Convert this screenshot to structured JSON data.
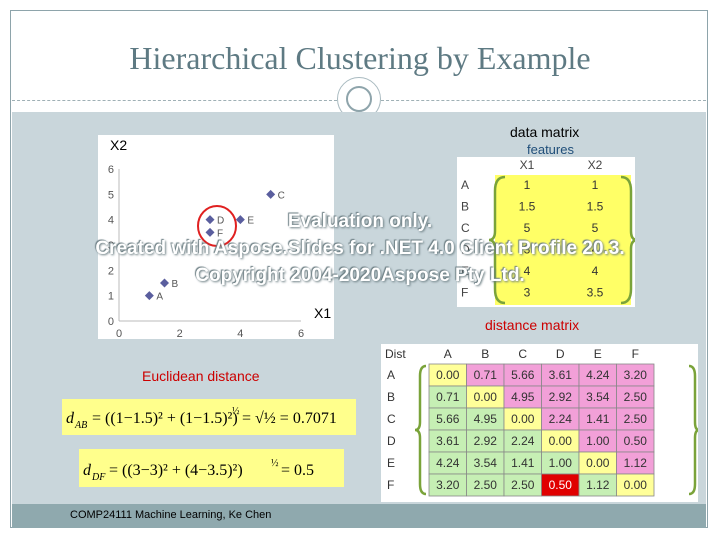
{
  "slide": {
    "title": "Hierarchical Clustering by Example",
    "footer": "COMP24111  Machine Learning, Ke Chen"
  },
  "labels": {
    "data_matrix": "data matrix",
    "features": "features",
    "distance_matrix": "distance matrix",
    "euclidean_distance": "Euclidean distance"
  },
  "scatter": {
    "x_axis_label": "X1",
    "y_axis_label": "X2",
    "x_ticks": [
      "0",
      "2",
      "4",
      "6"
    ],
    "y_ticks": [
      "0",
      "1",
      "2",
      "3",
      "4",
      "5",
      "6"
    ],
    "points": [
      {
        "name": "A",
        "x": 1,
        "y": 1
      },
      {
        "name": "B",
        "x": 1.5,
        "y": 1.5
      },
      {
        "name": "C",
        "x": 5,
        "y": 5
      },
      {
        "name": "D",
        "x": 3,
        "y": 4
      },
      {
        "name": "E",
        "x": 4,
        "y": 4
      },
      {
        "name": "F",
        "x": 3,
        "y": 3.5
      }
    ],
    "xlim": [
      0,
      6
    ],
    "ylim": [
      0,
      6
    ],
    "highlight": [
      "D",
      "F"
    ]
  },
  "data_matrix": {
    "columns": [
      "X1",
      "X2"
    ],
    "rows": [
      {
        "label": "A",
        "x1": "1",
        "x2": "1"
      },
      {
        "label": "B",
        "x1": "1.5",
        "x2": "1.5"
      },
      {
        "label": "C",
        "x1": "5",
        "x2": "5"
      },
      {
        "label": "D",
        "x1": "3",
        "x2": "4"
      },
      {
        "label": "E",
        "x1": "4",
        "x2": "4"
      },
      {
        "label": "F",
        "x1": "3",
        "x2": "3.5"
      }
    ]
  },
  "distance_matrix": {
    "corner": "Dist",
    "columns": [
      "A",
      "B",
      "C",
      "D",
      "E",
      "F"
    ],
    "rows": [
      {
        "label": "A",
        "values": [
          "0.00",
          "0.71",
          "5.66",
          "3.61",
          "4.24",
          "3.20"
        ]
      },
      {
        "label": "B",
        "values": [
          "0.71",
          "0.00",
          "4.95",
          "2.92",
          "3.54",
          "2.50"
        ]
      },
      {
        "label": "C",
        "values": [
          "5.66",
          "4.95",
          "0.00",
          "2.24",
          "1.41",
          "2.50"
        ]
      },
      {
        "label": "D",
        "values": [
          "3.61",
          "2.92",
          "2.24",
          "0.00",
          "1.00",
          "0.50"
        ]
      },
      {
        "label": "E",
        "values": [
          "4.24",
          "3.54",
          "1.41",
          "1.00",
          "0.00",
          "1.12"
        ]
      },
      {
        "label": "F",
        "values": [
          "3.20",
          "2.50",
          "2.50",
          "0.50",
          "1.12",
          "0.00"
        ]
      }
    ]
  },
  "equations": {
    "eq1": {
      "lhs": "d",
      "sub": "AB",
      "body": "= ((1−1.5)² + (1−1.5)²)",
      "exp": "½",
      "rhs": "= √½ = 0.7071"
    },
    "eq2": {
      "lhs": "d",
      "sub": "DF",
      "body": "= ((3−3)² + (4−3.5)²)",
      "exp": "½",
      "rhs": "= 0.5"
    }
  },
  "watermark": {
    "line1": "Evaluation only.",
    "line2": "Created with Aspose.Slides for .NET 4.0 Client Profile 20.3.",
    "line3": "Copyright 2004-2020Aspose Pty Ltd."
  },
  "colors": {
    "title": "#5e7a83",
    "band": "#c9d6db",
    "footer": "#8fa9ae",
    "point": "#5a5e9e",
    "highlight_circle": "#e02020",
    "cell_yellow": "#ffff99",
    "cell_green": "#c6efb4",
    "cell_pink": "#f2a0d8",
    "cell_red": "#e00000",
    "brace": "#7aa33a"
  }
}
